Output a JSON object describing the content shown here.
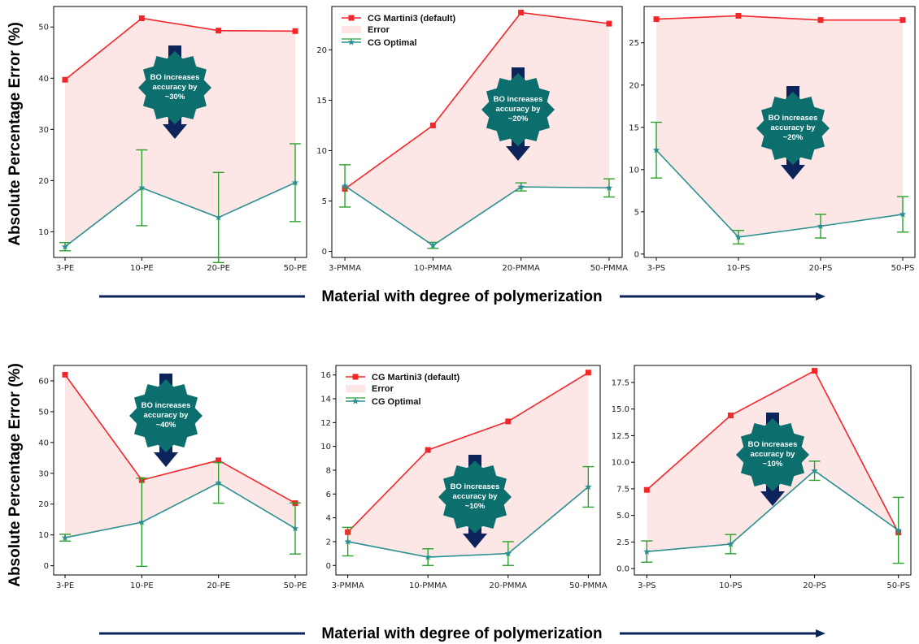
{
  "figure": {
    "ylabel": "Absolute Percentage Error (%)",
    "xlabel": "Material with degree of polymerization",
    "colors": {
      "default_line": "#f4262a",
      "error_fill": "#fde6e6",
      "optimal_line": "#2a8f8f",
      "errorbar": "#2ca02c",
      "badge": "#0d6e6e",
      "arrow": "#0c2459"
    },
    "legend_labels": [
      "CG Martini3 (default)",
      "Error",
      "CG Optimal"
    ]
  },
  "chart_data": [
    {
      "type": "line",
      "categories": [
        "3-PE",
        "10-PE",
        "20-PE",
        "50-PE"
      ],
      "ylim": [
        5,
        54
      ],
      "yticks": [
        10,
        20,
        30,
        40,
        50
      ],
      "legend": false,
      "series": [
        {
          "name": "CG Martini3 (default)",
          "values": [
            39.7,
            51.7,
            49.3,
            49.2
          ]
        },
        {
          "name": "CG Optimal",
          "values": [
            7.1,
            18.6,
            12.8,
            19.6
          ],
          "err": [
            0.8,
            7.4,
            8.8,
            7.6
          ]
        }
      ],
      "annotation": [
        "BO increases",
        "accuracy by",
        "~30%"
      ]
    },
    {
      "type": "line",
      "categories": [
        "3-PMMA",
        "10-PMMA",
        "20-PMMA",
        "50-PMMA"
      ],
      "ylim": [
        -0.6,
        24.3
      ],
      "yticks": [
        0,
        5,
        10,
        15,
        20
      ],
      "legend": true,
      "series": [
        {
          "name": "CG Martini3 (default)",
          "values": [
            6.2,
            12.5,
            23.7,
            22.6
          ]
        },
        {
          "name": "CG Optimal",
          "values": [
            6.5,
            0.6,
            6.4,
            6.3
          ],
          "err": [
            2.1,
            0.3,
            0.4,
            0.9
          ]
        }
      ],
      "annotation": [
        "BO increases",
        "accuracy by",
        "~20%"
      ]
    },
    {
      "type": "line",
      "categories": [
        "3-PS",
        "10-PS",
        "20-PS",
        "50-PS"
      ],
      "ylim": [
        -0.4,
        29.3
      ],
      "yticks": [
        0,
        5,
        10,
        15,
        20,
        25
      ],
      "legend": false,
      "series": [
        {
          "name": "CG Martini3 (default)",
          "values": [
            27.8,
            28.2,
            27.7,
            27.7
          ]
        },
        {
          "name": "CG Optimal",
          "values": [
            12.3,
            2.0,
            3.3,
            4.7
          ],
          "err": [
            3.3,
            0.8,
            1.4,
            2.1
          ]
        }
      ],
      "annotation": [
        "BO increases",
        "accuracy by",
        "~20%"
      ]
    },
    {
      "type": "line",
      "categories": [
        "3-PE",
        "10-PE",
        "20-PE",
        "50-PE"
      ],
      "ylim": [
        -3,
        65
      ],
      "yticks": [
        0,
        10,
        20,
        30,
        40,
        50,
        60
      ],
      "legend": false,
      "series": [
        {
          "name": "CG Martini3 (default)",
          "values": [
            62.0,
            27.8,
            34.2,
            20.3
          ]
        },
        {
          "name": "CG Optimal",
          "values": [
            9.1,
            14.1,
            26.9,
            12.1
          ],
          "err": [
            1.1,
            14.3,
            6.6,
            8.3
          ]
        }
      ],
      "annotation": [
        "BO increases",
        "accuracy by",
        "~40%"
      ]
    },
    {
      "type": "line",
      "categories": [
        "3-PMMA",
        "10-PMMA",
        "20-PMMA",
        "50-PMMA"
      ],
      "ylim": [
        -0.8,
        16.8
      ],
      "yticks": [
        0,
        2,
        4,
        6,
        8,
        10,
        12,
        14,
        16
      ],
      "legend": true,
      "series": [
        {
          "name": "CG Martini3 (default)",
          "values": [
            2.8,
            9.7,
            12.1,
            16.2
          ]
        },
        {
          "name": "CG Optimal",
          "values": [
            2.0,
            0.7,
            1.0,
            6.6
          ],
          "err": [
            1.2,
            0.7,
            1.0,
            1.7
          ]
        }
      ],
      "annotation": [
        "BO increases",
        "accuracy by",
        "~10%"
      ]
    },
    {
      "type": "line",
      "categories": [
        "3-PS",
        "10-PS",
        "20-PS",
        "50-PS"
      ],
      "ylim": [
        -0.6,
        19.1
      ],
      "yticks": [
        0.0,
        2.5,
        5.0,
        7.5,
        10.0,
        12.5,
        15.0,
        17.5
      ],
      "legend": false,
      "series": [
        {
          "name": "CG Martini3 (default)",
          "values": [
            7.4,
            14.4,
            18.6,
            3.4
          ]
        },
        {
          "name": "CG Optimal",
          "values": [
            1.6,
            2.3,
            9.2,
            3.6
          ],
          "err": [
            1.0,
            0.9,
            0.9,
            3.1
          ]
        }
      ],
      "annotation": [
        "BO increases",
        "accuracy by",
        "~10%"
      ]
    }
  ]
}
